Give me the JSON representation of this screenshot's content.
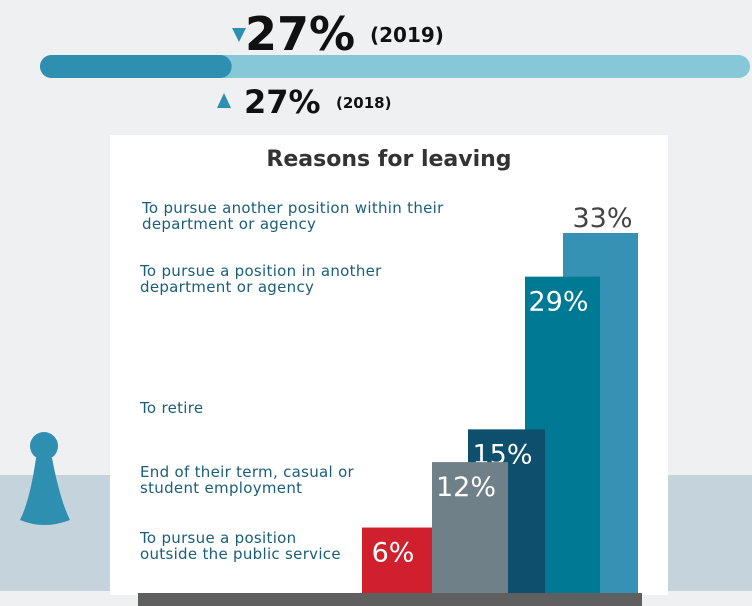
{
  "progress": {
    "value": 27,
    "value_label": "27%",
    "year": "(2019)",
    "xlim": [
      0,
      100
    ],
    "previous": {
      "value": 27,
      "value_label": "27%",
      "year": "(2018)"
    }
  },
  "chart_data": {
    "type": "bar",
    "title": "Reasons for leaving",
    "categories": [
      "To pursue another position within their department or agency",
      "To pursue a position in another department or agency",
      "To retire",
      "End of their term, casual or student employment",
      "To pursue a position outside the public service"
    ],
    "values": [
      33,
      29,
      15,
      12,
      6
    ],
    "value_labels": [
      "33%",
      "29%",
      "15%",
      "12%",
      "6%"
    ],
    "colors": [
      "#3592b5",
      "#007a94",
      "#0e4f6e",
      "#6f8088",
      "#d0202e"
    ],
    "ylim": [
      0,
      33
    ]
  }
}
